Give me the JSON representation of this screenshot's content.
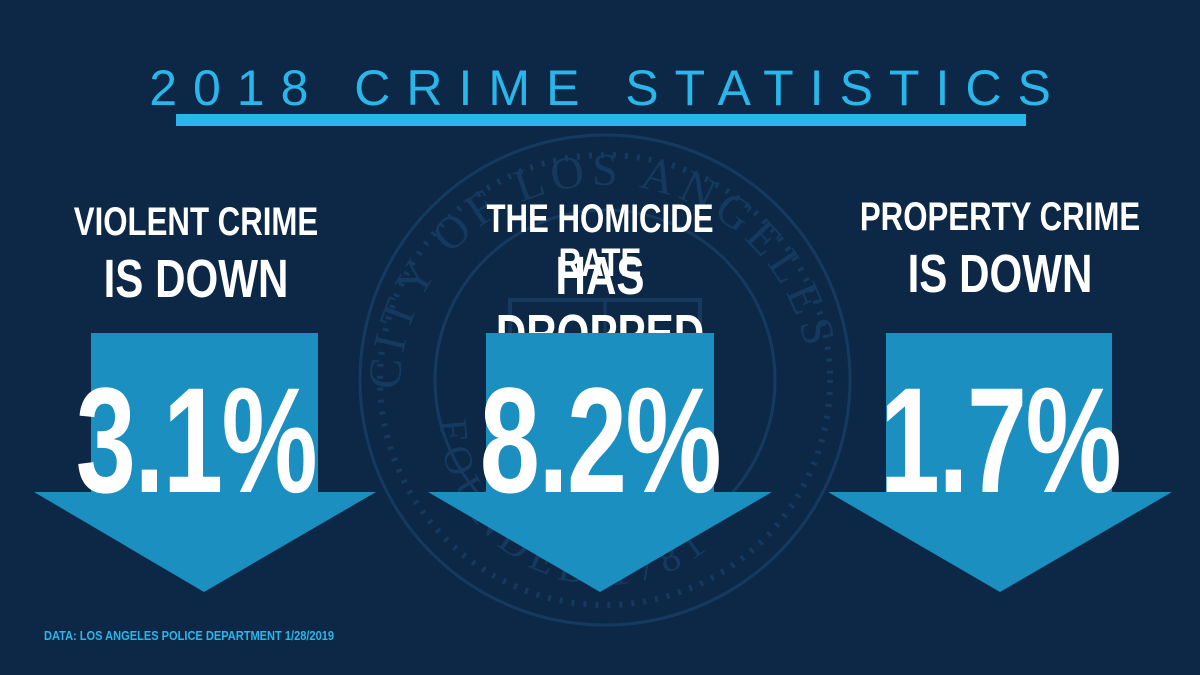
{
  "title": "2018 CRIME STATISTICS",
  "colors": {
    "background": "#0d2846",
    "accent": "#29b6ea",
    "arrow": "#1a8fc0",
    "text": "#ffffff"
  },
  "watermark": {
    "icon": "city-seal-icon",
    "text_top": "CITY OF LOS ANGELES",
    "text_bottom": "FOUNDED 1781"
  },
  "stats": [
    {
      "line1": "VIOLENT CRIME",
      "line2": "IS DOWN",
      "value": "3.1%",
      "icon": "down-arrow-icon"
    },
    {
      "line1": "THE  HOMICIDE RATE",
      "line2": "HAS DROPPED",
      "value": "8.2%",
      "icon": "down-arrow-icon"
    },
    {
      "line1": "PROPERTY CRIME",
      "line2": "IS DOWN",
      "value": "1.7%",
      "icon": "down-arrow-icon"
    }
  ],
  "source": "DATA: LOS ANGELES POLICE DEPARTMENT 1/28/2019"
}
